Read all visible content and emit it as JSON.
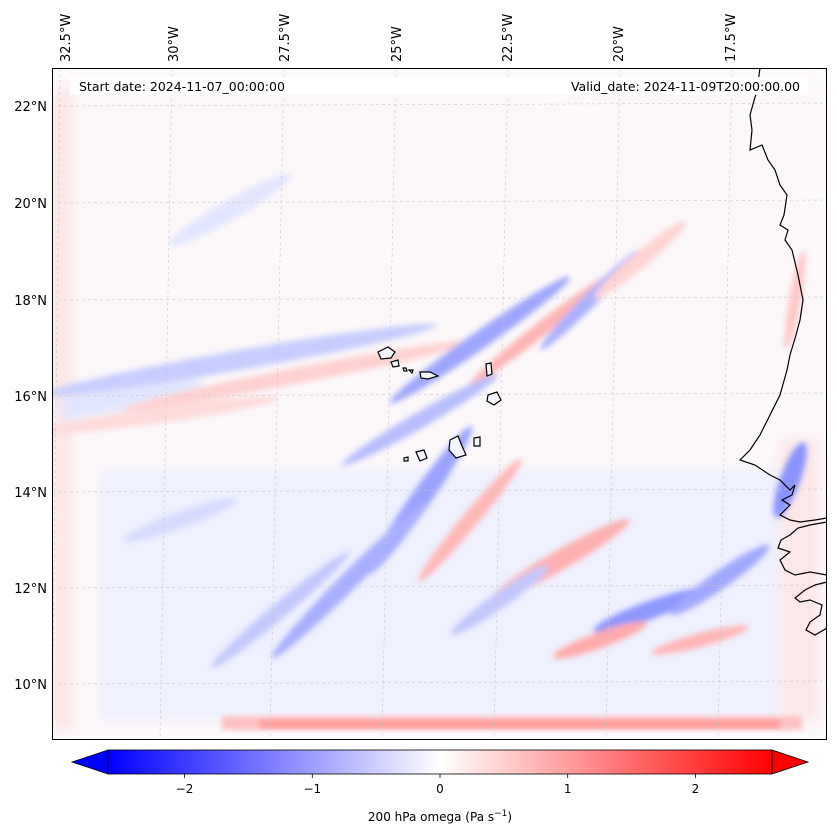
{
  "header": {
    "start_date": "Start date: 2024-11-07_00:00:00",
    "valid_date": "Valid_date: 2024-11-09T20:00:00.00"
  },
  "map": {
    "longitude_labels": [
      "32.5°W",
      "30°W",
      "27.5°W",
      "25°W",
      "22.5°W",
      "20°W",
      "17.5°W"
    ],
    "latitude_labels": [
      "22°N",
      "20°N",
      "18°N",
      "16°N",
      "14°N",
      "12°N",
      "10°N"
    ],
    "field": "200 hPa omega",
    "positive_color": "#ff0000",
    "negative_color": "#0000ff",
    "coastline_color": "#000000"
  },
  "colorbar": {
    "label_main": "200 hPa omega (Pa s",
    "label_exp": "−1",
    "label_close": ")",
    "range": [
      -2.6,
      2.6
    ],
    "ticks": [
      "−2",
      "−1",
      "0",
      "1",
      "2"
    ],
    "tick_values": [
      -2,
      -1,
      0,
      1,
      2
    ],
    "min_color": "#0000ff",
    "mid_color": "#ffffff",
    "max_color": "#ff0000",
    "extend": "both"
  }
}
